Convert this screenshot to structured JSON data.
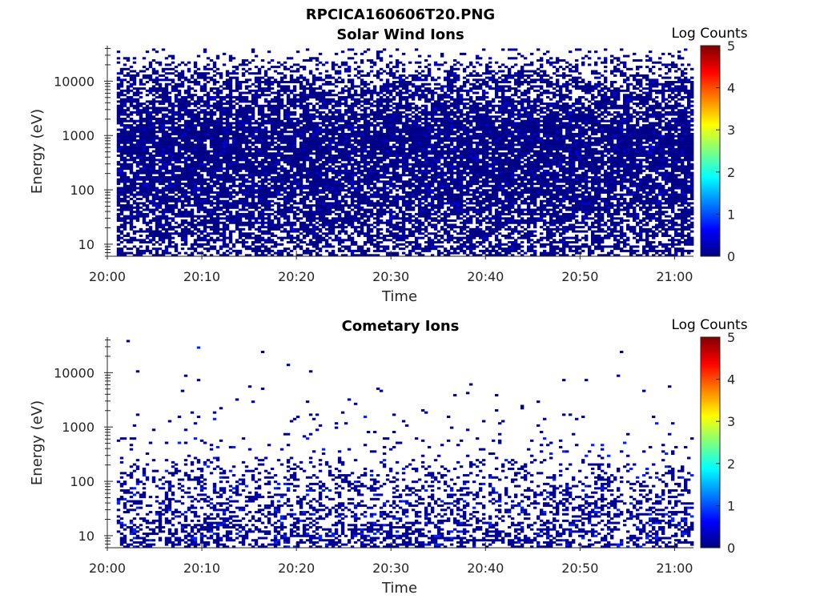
{
  "figure": {
    "title": "RPCICA160606T20.PNG"
  },
  "colors": {
    "jet": [
      "#00007f",
      "#0000ff",
      "#007fff",
      "#00ffff",
      "#7fff7f",
      "#ffff00",
      "#ff7f00",
      "#ff0000",
      "#7f0000"
    ],
    "axis": "#262626",
    "background": "#ffffff"
  },
  "chart_data": [
    {
      "type": "heatmap",
      "title": "Solar Wind Ions",
      "xlabel": "Time",
      "ylabel": "Energy (eV)",
      "x_range": [
        "20:00",
        "21:02"
      ],
      "x_ticks": [
        "20:00",
        "20:10",
        "20:20",
        "20:30",
        "20:40",
        "20:50",
        "21:00"
      ],
      "y_scale": "log",
      "y_range": [
        6,
        45000
      ],
      "y_ticks": [
        "10",
        "100",
        "1000",
        "10000"
      ],
      "data_start": "20:01",
      "data_end": "21:02",
      "colorbar": {
        "label": "Log Counts",
        "range": [
          0,
          5
        ],
        "ticks": [
          "0",
          "1",
          "2",
          "3",
          "4",
          "5"
        ]
      },
      "occupancy_by_energy": [
        {
          "energy": 10,
          "fraction": 0.55
        },
        {
          "energy": 30,
          "fraction": 0.7
        },
        {
          "energy": 100,
          "fraction": 0.8
        },
        {
          "energy": 1000,
          "fraction": 0.88
        },
        {
          "energy": 10000,
          "fraction": 0.55
        },
        {
          "energy": 30000,
          "fraction": 0.12
        }
      ],
      "typical_log_counts": 0.1,
      "grid": false
    },
    {
      "type": "heatmap",
      "title": "Cometary Ions",
      "xlabel": "Time",
      "ylabel": "Energy (eV)",
      "x_range": [
        "20:00",
        "21:02"
      ],
      "x_ticks": [
        "20:00",
        "20:10",
        "20:20",
        "20:30",
        "20:40",
        "20:50",
        "21:00"
      ],
      "y_scale": "log",
      "y_range": [
        6,
        45000
      ],
      "y_ticks": [
        "10",
        "100",
        "1000",
        "10000"
      ],
      "data_start": "20:01",
      "data_end": "21:02",
      "colorbar": {
        "label": "Log Counts",
        "range": [
          0,
          5
        ],
        "ticks": [
          "0",
          "1",
          "2",
          "3",
          "4",
          "5"
        ]
      },
      "occupancy_by_energy": [
        {
          "energy": 10,
          "fraction": 0.5
        },
        {
          "energy": 30,
          "fraction": 0.35
        },
        {
          "energy": 100,
          "fraction": 0.3
        },
        {
          "energy": 300,
          "fraction": 0.07
        },
        {
          "energy": 1000,
          "fraction": 0.02
        },
        {
          "energy": 10000,
          "fraction": 0.003
        }
      ],
      "typical_log_counts": 0.2,
      "grid": false
    }
  ]
}
